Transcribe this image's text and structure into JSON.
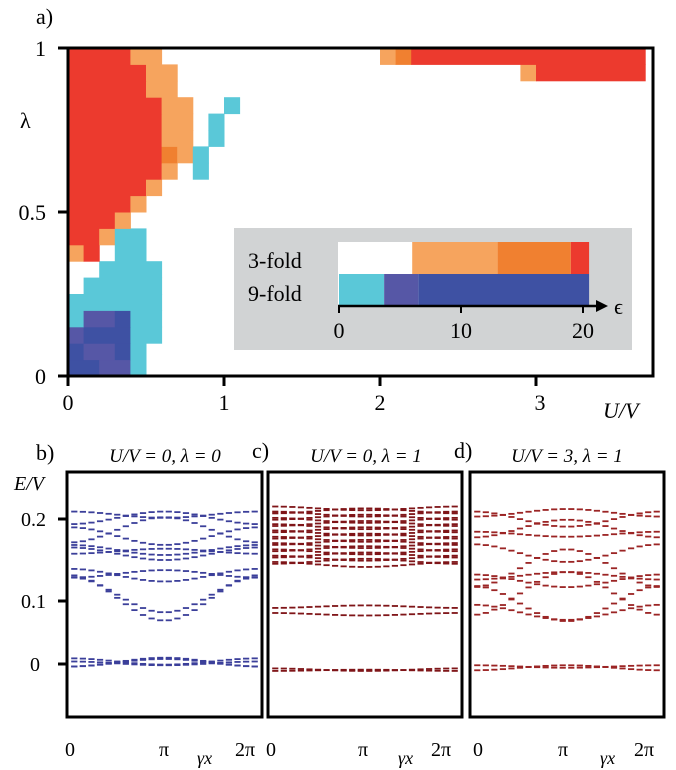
{
  "chart_data": [
    {
      "panel": "a)",
      "type": "heatmap",
      "xlabel": "U/V",
      "ylabel": "λ",
      "xlim": [
        0,
        3.75
      ],
      "ylim": [
        0,
        1
      ],
      "xticks": [
        "0",
        "1",
        "2",
        "3"
      ],
      "xtick_values": [
        0,
        1,
        2,
        3
      ],
      "yticks": [
        "0",
        "0.5",
        "1"
      ],
      "ytick_values": [
        0,
        0.5,
        1
      ],
      "grid": {
        "nx": 37,
        "ny": 20,
        "dx": 0.1,
        "dy": 0.05
      },
      "palette": {
        "1": "#5ac8d8",
        "2": "#5657a6",
        "3": "#3e51a3",
        "4": "#f6a45e",
        "5": "#f08030",
        "6": "#ec3a2e"
      },
      "runs": [
        {
          "row": 0,
          "segments": [
            [
              0,
              1,
              3
            ],
            [
              2,
              3,
              2
            ],
            [
              4,
              4,
              1
            ]
          ]
        },
        {
          "row": 1,
          "segments": [
            [
              0,
              0,
              3
            ],
            [
              1,
              2,
              2
            ],
            [
              3,
              3,
              3
            ],
            [
              4,
              4,
              1
            ]
          ]
        },
        {
          "row": 2,
          "segments": [
            [
              0,
              0,
              2
            ],
            [
              1,
              3,
              3
            ],
            [
              4,
              5,
              1
            ]
          ]
        },
        {
          "row": 3,
          "segments": [
            [
              0,
              0,
              1
            ],
            [
              1,
              2,
              2
            ],
            [
              3,
              3,
              3
            ],
            [
              4,
              5,
              1
            ]
          ]
        },
        {
          "row": 4,
          "segments": [
            [
              0,
              5,
              1
            ]
          ]
        },
        {
          "row": 5,
          "segments": [
            [
              1,
              5,
              1
            ]
          ]
        },
        {
          "row": 6,
          "segments": [
            [
              2,
              5,
              1
            ]
          ]
        },
        {
          "row": 7,
          "segments": [
            [
              0,
              0,
              4
            ],
            [
              1,
              1,
              6
            ],
            [
              3,
              4,
              1
            ]
          ]
        },
        {
          "row": 8,
          "segments": [
            [
              0,
              1,
              6
            ],
            [
              2,
              2,
              4
            ],
            [
              3,
              4,
              1
            ]
          ]
        },
        {
          "row": 9,
          "segments": [
            [
              0,
              2,
              6
            ],
            [
              3,
              3,
              4
            ]
          ]
        },
        {
          "row": 10,
          "segments": [
            [
              0,
              3,
              6
            ],
            [
              4,
              4,
              4
            ]
          ]
        },
        {
          "row": 11,
          "segments": [
            [
              0,
              4,
              6
            ],
            [
              5,
              5,
              4
            ]
          ]
        },
        {
          "row": 12,
          "segments": [
            [
              0,
              5,
              6
            ],
            [
              6,
              6,
              4
            ],
            [
              8,
              8,
              1
            ]
          ]
        },
        {
          "row": 13,
          "segments": [
            [
              0,
              5,
              6
            ],
            [
              6,
              6,
              5
            ],
            [
              7,
              7,
              4
            ],
            [
              8,
              8,
              1
            ]
          ]
        },
        {
          "row": 14,
          "segments": [
            [
              0,
              5,
              6
            ],
            [
              6,
              7,
              4
            ],
            [
              9,
              9,
              1
            ]
          ]
        },
        {
          "row": 15,
          "segments": [
            [
              0,
              5,
              6
            ],
            [
              6,
              7,
              4
            ],
            [
              9,
              9,
              1
            ]
          ]
        },
        {
          "row": 16,
          "segments": [
            [
              0,
              5,
              6
            ],
            [
              6,
              7,
              4
            ],
            [
              10,
              10,
              1
            ]
          ]
        },
        {
          "row": 17,
          "segments": [
            [
              0,
              4,
              6
            ],
            [
              5,
              6,
              4
            ]
          ]
        },
        {
          "row": 18,
          "segments": [
            [
              0,
              4,
              6
            ],
            [
              5,
              6,
              4
            ],
            [
              29,
              29,
              4
            ],
            [
              30,
              36,
              6
            ]
          ]
        },
        {
          "row": 19,
          "segments": [
            [
              0,
              3,
              6
            ],
            [
              4,
              5,
              4
            ],
            [
              20,
              20,
              4
            ],
            [
              21,
              21,
              5
            ],
            [
              22,
              36,
              6
            ]
          ]
        }
      ],
      "inset_legend": {
        "rows": [
          "3-fold",
          "9-fold"
        ],
        "axis_label": "ϵ",
        "ticks": [
          "0",
          "10",
          "20"
        ],
        "tick_values": [
          0,
          10,
          20
        ],
        "xlim": [
          0,
          20
        ],
        "bars": [
          {
            "row": "3-fold",
            "segments": [
              [
                6,
                13,
                "#f6a45e"
              ],
              [
                13,
                19,
                "#f08030"
              ],
              [
                19,
                20.5,
                "#ec3a2e"
              ]
            ]
          },
          {
            "row": "9-fold",
            "segments": [
              [
                0,
                3.7,
                "#5ac8d8"
              ],
              [
                3.7,
                6.5,
                "#5657a6"
              ],
              [
                6.5,
                20.5,
                "#3e51a3"
              ]
            ]
          }
        ]
      }
    },
    {
      "panel": "b)",
      "type": "scatter",
      "title": "U/V = 0, λ = 0",
      "ylabel": "E/V",
      "xlabel": "γx",
      "xticks": [
        "0",
        "π",
        "2π"
      ],
      "xtick_values": [
        0,
        3.1416,
        6.2832
      ],
      "yticks": [
        "0",
        "0.1",
        "0.2"
      ],
      "ytick_values": [
        0,
        0.1,
        0.2
      ],
      "ylim": [
        -0.03,
        0.25
      ],
      "color": "#3b3f9a",
      "bands": [
        [
          0.002,
          0.006,
          -1
        ],
        [
          0.004,
          0.005,
          1
        ],
        [
          0.001,
          0.003,
          1
        ],
        [
          0.003,
          0.007,
          -1
        ],
        [
          0.105,
          0.036,
          1
        ],
        [
          0.11,
          0.028,
          1
        ],
        [
          0.141,
          0.01,
          1
        ],
        [
          0.143,
          0.006,
          -1
        ],
        [
          0.175,
          0.01,
          1
        ],
        [
          0.179,
          0.004,
          -1
        ],
        [
          0.181,
          0.008,
          1
        ],
        [
          0.203,
          0.014,
          1
        ],
        [
          0.213,
          0.02,
          -1
        ],
        [
          0.232,
          0.01,
          -1
        ],
        [
          0.237,
          0.005,
          1
        ]
      ]
    },
    {
      "panel": "c)",
      "type": "scatter",
      "title": "U/V = 0, λ = 1",
      "xlabel": "γx",
      "xticks": [
        "0",
        "π",
        "2π"
      ],
      "xtick_values": [
        0,
        3.1416,
        6.2832
      ],
      "ylim": [
        -0.03,
        0.25
      ],
      "color": "#7f1518",
      "bands": [
        [
          -0.009,
          0.002,
          1
        ],
        [
          -0.01,
          0.001,
          -1
        ],
        [
          0.079,
          0.002,
          1
        ],
        [
          0.091,
          0.002,
          -1
        ],
        [
          0.158,
          0.004,
          1
        ],
        [
          0.163,
          0.004,
          -1
        ],
        [
          0.168,
          0.004,
          1
        ],
        [
          0.173,
          0.004,
          -1
        ],
        [
          0.178,
          0.004,
          1
        ],
        [
          0.183,
          0.004,
          -1
        ],
        [
          0.188,
          0.004,
          1
        ],
        [
          0.193,
          0.004,
          -1
        ],
        [
          0.198,
          0.004,
          1
        ],
        [
          0.203,
          0.004,
          -1
        ],
        [
          0.208,
          0.004,
          1
        ],
        [
          0.213,
          0.004,
          -1
        ],
        [
          0.218,
          0.004,
          1
        ],
        [
          0.223,
          0.004,
          -1
        ],
        [
          0.228,
          0.004,
          1
        ],
        [
          0.233,
          0.004,
          -1
        ],
        [
          0.238,
          0.004,
          1
        ],
        [
          0.243,
          0.004,
          -1
        ],
        [
          0.247,
          0.003,
          1
        ]
      ]
    },
    {
      "panel": "d)",
      "type": "scatter",
      "title": "U/V = 3, λ = 1",
      "xlabel": "γx",
      "xticks": [
        "0",
        "π",
        "2π"
      ],
      "xtick_values": [
        0,
        3.1416,
        6.2832
      ],
      "ylim": [
        -0.03,
        0.25
      ],
      "color": "#9b2424",
      "bands": [
        [
          -0.006,
          0.004,
          -1
        ],
        [
          -0.004,
          0.002,
          1
        ],
        [
          0.082,
          0.012,
          1
        ],
        [
          0.096,
          0.028,
          1
        ],
        [
          0.112,
          0.034,
          -1
        ],
        [
          0.132,
          0.01,
          1
        ],
        [
          0.14,
          0.006,
          -1
        ],
        [
          0.152,
          0.03,
          -1
        ],
        [
          0.176,
          0.014,
          1
        ],
        [
          0.206,
          0.004,
          1
        ],
        [
          0.215,
          0.014,
          -1
        ],
        [
          0.23,
          0.012,
          1
        ],
        [
          0.24,
          0.006,
          -1
        ]
      ]
    }
  ]
}
